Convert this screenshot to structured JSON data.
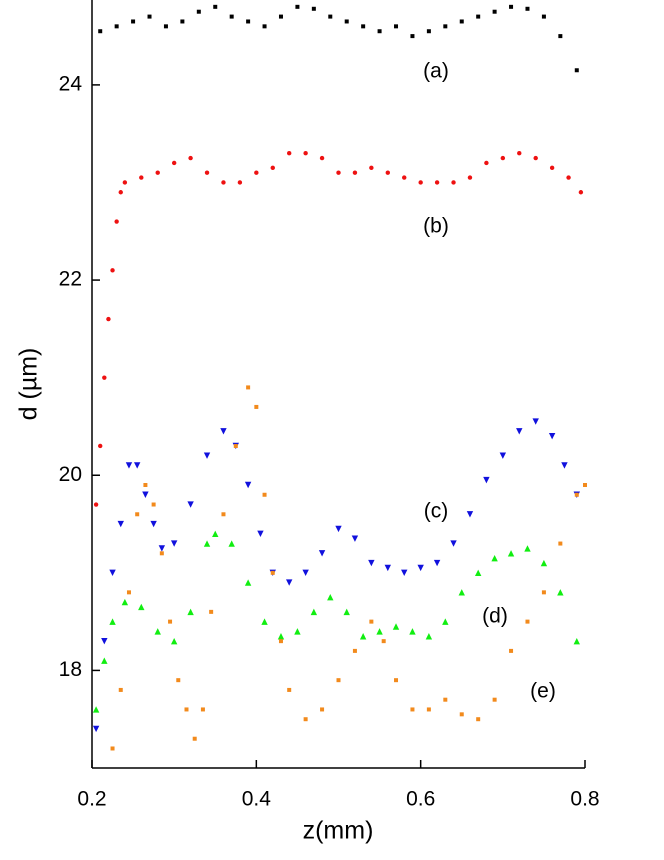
{
  "chart_data": {
    "type": "scatter",
    "x_label": "z(mm)",
    "y_label": "d (µm)",
    "xlim": [
      0.2,
      0.8
    ],
    "xticks": [
      0.2,
      0.4,
      0.6,
      0.8
    ],
    "ylim": [
      17,
      24.87
    ],
    "yticks": [
      18,
      20,
      22,
      24
    ],
    "annotations": [
      "(a)",
      "(b)",
      "(c)",
      "(d)",
      "(e)"
    ],
    "series": [
      {
        "color": "#000000",
        "marker": "square",
        "x": [
          0.21,
          0.23,
          0.25,
          0.27,
          0.29,
          0.31,
          0.33,
          0.35,
          0.37,
          0.39,
          0.41,
          0.43,
          0.45,
          0.47,
          0.49,
          0.51,
          0.53,
          0.55,
          0.57,
          0.59,
          0.61,
          0.63,
          0.65,
          0.67,
          0.69,
          0.71,
          0.73,
          0.75,
          0.77,
          0.79
        ],
        "values": [
          24.55,
          24.6,
          24.65,
          24.7,
          24.6,
          24.65,
          24.75,
          24.8,
          24.7,
          24.65,
          24.6,
          24.7,
          24.8,
          24.78,
          24.7,
          24.65,
          24.6,
          24.55,
          24.6,
          24.5,
          24.55,
          24.6,
          24.65,
          24.7,
          24.75,
          24.8,
          24.78,
          24.7,
          24.5,
          24.15
        ]
      },
      {
        "color": "#ee1111",
        "marker": "circle",
        "x": [
          0.205,
          0.21,
          0.215,
          0.22,
          0.225,
          0.23,
          0.235,
          0.24,
          0.26,
          0.28,
          0.3,
          0.32,
          0.34,
          0.36,
          0.38,
          0.4,
          0.42,
          0.44,
          0.46,
          0.48,
          0.5,
          0.52,
          0.54,
          0.56,
          0.58,
          0.6,
          0.62,
          0.64,
          0.66,
          0.68,
          0.7,
          0.72,
          0.74,
          0.76,
          0.78,
          0.795
        ],
        "values": [
          19.7,
          20.3,
          21.0,
          21.6,
          22.1,
          22.6,
          22.9,
          23.0,
          23.05,
          23.1,
          23.2,
          23.25,
          23.1,
          23.0,
          23.0,
          23.1,
          23.15,
          23.3,
          23.3,
          23.25,
          23.1,
          23.1,
          23.15,
          23.1,
          23.05,
          23.0,
          23.0,
          23.0,
          23.05,
          23.2,
          23.25,
          23.3,
          23.25,
          23.15,
          23.05,
          22.9
        ]
      },
      {
        "color": "#1111dd",
        "marker": "triangle-down",
        "x": [
          0.205,
          0.215,
          0.225,
          0.235,
          0.245,
          0.255,
          0.265,
          0.275,
          0.285,
          0.3,
          0.32,
          0.34,
          0.36,
          0.375,
          0.39,
          0.405,
          0.42,
          0.44,
          0.46,
          0.48,
          0.5,
          0.52,
          0.54,
          0.56,
          0.58,
          0.6,
          0.62,
          0.64,
          0.66,
          0.68,
          0.7,
          0.72,
          0.74,
          0.76,
          0.775,
          0.79
        ],
        "values": [
          17.4,
          18.3,
          19.0,
          19.5,
          20.1,
          20.1,
          19.8,
          19.5,
          19.25,
          19.3,
          19.7,
          20.2,
          20.45,
          20.3,
          19.9,
          19.4,
          19.0,
          18.9,
          19.0,
          19.2,
          19.45,
          19.35,
          19.1,
          19.05,
          19.0,
          19.05,
          19.1,
          19.3,
          19.6,
          19.95,
          20.2,
          20.45,
          20.55,
          20.4,
          20.1,
          19.8
        ]
      },
      {
        "color": "#11ee11",
        "marker": "triangle-up",
        "x": [
          0.205,
          0.215,
          0.225,
          0.24,
          0.26,
          0.28,
          0.3,
          0.32,
          0.34,
          0.35,
          0.37,
          0.39,
          0.41,
          0.43,
          0.45,
          0.47,
          0.49,
          0.51,
          0.53,
          0.55,
          0.57,
          0.59,
          0.61,
          0.63,
          0.65,
          0.67,
          0.69,
          0.71,
          0.73,
          0.75,
          0.77,
          0.79
        ],
        "values": [
          17.6,
          18.1,
          18.5,
          18.7,
          18.65,
          18.4,
          18.3,
          18.6,
          19.3,
          19.4,
          19.3,
          18.9,
          18.5,
          18.35,
          18.4,
          18.6,
          18.75,
          18.6,
          18.35,
          18.4,
          18.45,
          18.4,
          18.35,
          18.5,
          18.8,
          19.0,
          19.15,
          19.2,
          19.25,
          19.1,
          18.8,
          18.3
        ]
      },
      {
        "color": "#f28a1c",
        "marker": "square",
        "x": [
          0.225,
          0.235,
          0.245,
          0.255,
          0.265,
          0.275,
          0.285,
          0.295,
          0.305,
          0.315,
          0.325,
          0.335,
          0.345,
          0.36,
          0.375,
          0.39,
          0.4,
          0.41,
          0.42,
          0.43,
          0.44,
          0.46,
          0.48,
          0.5,
          0.52,
          0.54,
          0.555,
          0.57,
          0.59,
          0.61,
          0.63,
          0.65,
          0.67,
          0.69,
          0.71,
          0.73,
          0.75,
          0.77,
          0.79,
          0.8
        ],
        "values": [
          17.2,
          17.8,
          18.8,
          19.6,
          19.9,
          19.7,
          19.2,
          18.5,
          17.9,
          17.6,
          17.3,
          17.6,
          18.6,
          19.6,
          20.3,
          20.9,
          20.7,
          19.8,
          19.0,
          18.3,
          17.8,
          17.5,
          17.6,
          17.9,
          18.2,
          18.5,
          18.3,
          17.9,
          17.6,
          17.6,
          17.7,
          17.55,
          17.5,
          17.7,
          18.2,
          18.5,
          18.8,
          19.3,
          19.8,
          19.9
        ]
      }
    ]
  }
}
